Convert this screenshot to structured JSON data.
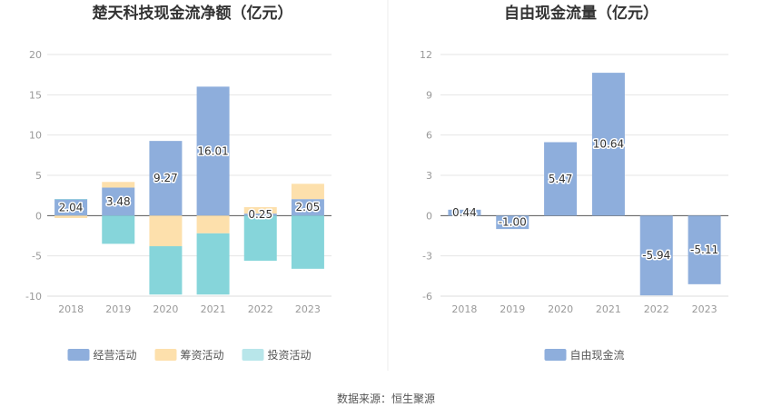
{
  "chart_data": [
    {
      "type": "bar",
      "stacked": true,
      "title": "楚天科技现金流净额（亿元）",
      "categories": [
        "2018",
        "2019",
        "2020",
        "2021",
        "2022",
        "2023"
      ],
      "y_ticks": [
        "20",
        "15",
        "10",
        "5",
        "0",
        "-5",
        "-10"
      ],
      "ylim": [
        -10,
        20
      ],
      "series": [
        {
          "name": "经营活动",
          "color": "#8eaedc",
          "values": [
            2.04,
            3.48,
            9.27,
            16.01,
            0.25,
            2.05
          ]
        },
        {
          "name": "筹资活动",
          "color": "#fde0ac",
          "values": [
            -0.3,
            0.7,
            -3.8,
            -2.2,
            0.8,
            1.9
          ]
        },
        {
          "name": "投资活动",
          "color": "#86d5da",
          "values": [
            0.0,
            -3.5,
            -6.0,
            -7.6,
            -5.6,
            -6.6
          ]
        }
      ],
      "data_labels": [
        "2.04",
        "3.48",
        "9.27",
        "16.01",
        "0.25",
        "2.05"
      ],
      "legend": [
        "经营活动",
        "筹资活动",
        "投资活动"
      ],
      "legend_position": "bottom"
    },
    {
      "type": "bar",
      "title": "自由现金流量（亿元）",
      "categories": [
        "2018",
        "2019",
        "2020",
        "2021",
        "2022",
        "2023"
      ],
      "y_ticks": [
        "12",
        "9",
        "6",
        "3",
        "0",
        "-3",
        "-6"
      ],
      "ylim": [
        -6,
        12
      ],
      "series": [
        {
          "name": "自由现金流",
          "color": "#8eaedc",
          "values": [
            0.44,
            -1.0,
            5.47,
            10.64,
            -5.94,
            -5.11
          ]
        }
      ],
      "data_labels": [
        "0.44",
        "-1.00",
        "5.47",
        "10.64",
        "-5.94",
        "-5.11"
      ],
      "legend": [
        "自由现金流"
      ],
      "legend_position": "bottom"
    }
  ],
  "footer": {
    "source": "数据来源：恒生聚源"
  }
}
